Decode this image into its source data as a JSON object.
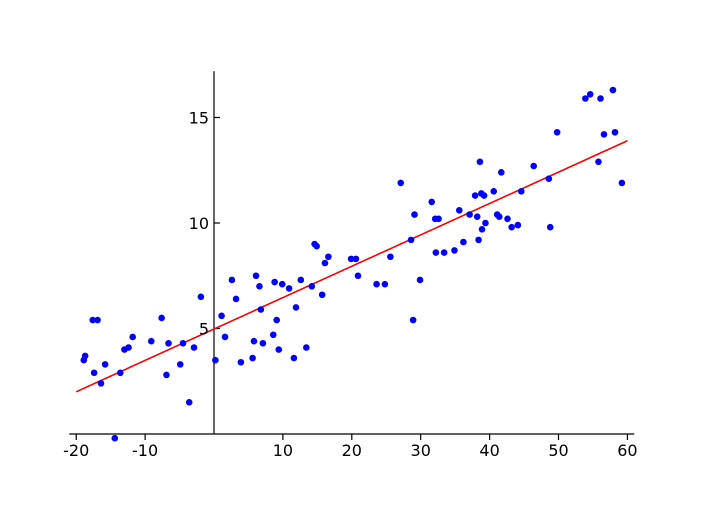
{
  "chart_data": {
    "type": "scatter",
    "title": "",
    "xlabel": "",
    "ylabel": "",
    "xlim": [
      -21,
      61
    ],
    "ylim": [
      0,
      17
    ],
    "x_ticks": [
      -20,
      -10,
      10,
      20,
      30,
      40,
      50,
      60
    ],
    "x_tick_labels": [
      "-20",
      "-10",
      "10",
      "20",
      "30",
      "40",
      "50",
      "60"
    ],
    "y_ticks": [
      5,
      10,
      15
    ],
    "y_tick_labels": [
      "5",
      "10",
      "15"
    ],
    "grid": false,
    "legend": "none",
    "colors": {
      "points": "#0000ff",
      "fit_line": "#ff0000",
      "axes": "#000000"
    },
    "series": [
      {
        "kind": "points",
        "points": [
          [
            -18.9,
            3.5
          ],
          [
            -18.7,
            3.7
          ],
          [
            -17.6,
            5.4
          ],
          [
            -17.4,
            2.9
          ],
          [
            -16.9,
            5.4
          ],
          [
            -16.4,
            2.4
          ],
          [
            -15.8,
            3.3
          ],
          [
            -14.4,
            -0.2
          ],
          [
            -13.6,
            2.9
          ],
          [
            -13.0,
            4.0
          ],
          [
            -12.4,
            4.1
          ],
          [
            -11.8,
            4.6
          ],
          [
            -9.1,
            4.4
          ],
          [
            -7.6,
            5.5
          ],
          [
            -6.9,
            2.8
          ],
          [
            -6.6,
            4.3
          ],
          [
            -4.9,
            3.3
          ],
          [
            -4.5,
            4.3
          ],
          [
            -3.6,
            1.5
          ],
          [
            -2.9,
            4.1
          ],
          [
            -1.9,
            6.5
          ],
          [
            0.2,
            3.5
          ],
          [
            1.1,
            5.6
          ],
          [
            1.6,
            4.6
          ],
          [
            2.6,
            7.3
          ],
          [
            3.2,
            6.4
          ],
          [
            3.9,
            3.4
          ],
          [
            5.6,
            3.6
          ],
          [
            5.8,
            4.4
          ],
          [
            6.1,
            7.5
          ],
          [
            6.6,
            7.0
          ],
          [
            6.8,
            5.9
          ],
          [
            7.1,
            4.3
          ],
          [
            8.6,
            4.7
          ],
          [
            8.8,
            7.2
          ],
          [
            9.1,
            5.4
          ],
          [
            9.4,
            4.0
          ],
          [
            9.9,
            7.1
          ],
          [
            10.9,
            6.9
          ],
          [
            11.6,
            3.6
          ],
          [
            11.9,
            6.0
          ],
          [
            12.6,
            7.3
          ],
          [
            13.4,
            4.1
          ],
          [
            14.2,
            7.0
          ],
          [
            14.6,
            9.0
          ],
          [
            14.9,
            8.9
          ],
          [
            15.7,
            6.6
          ],
          [
            16.1,
            8.1
          ],
          [
            16.6,
            8.4
          ],
          [
            19.9,
            8.3
          ],
          [
            20.6,
            8.3
          ],
          [
            20.9,
            7.5
          ],
          [
            23.6,
            7.1
          ],
          [
            24.8,
            7.1
          ],
          [
            25.6,
            8.4
          ],
          [
            27.1,
            11.9
          ],
          [
            28.6,
            9.2
          ],
          [
            28.9,
            5.4
          ],
          [
            29.1,
            10.4
          ],
          [
            29.9,
            7.3
          ],
          [
            31.6,
            11.0
          ],
          [
            32.1,
            10.2
          ],
          [
            32.2,
            8.6
          ],
          [
            32.6,
            10.2
          ],
          [
            33.4,
            8.6
          ],
          [
            34.9,
            8.7
          ],
          [
            35.6,
            10.6
          ],
          [
            36.2,
            9.1
          ],
          [
            37.1,
            10.4
          ],
          [
            37.9,
            11.3
          ],
          [
            38.2,
            10.3
          ],
          [
            38.4,
            9.2
          ],
          [
            38.6,
            12.9
          ],
          [
            38.8,
            11.4
          ],
          [
            38.9,
            9.7
          ],
          [
            39.2,
            11.3
          ],
          [
            39.4,
            10.0
          ],
          [
            40.6,
            11.5
          ],
          [
            41.1,
            10.4
          ],
          [
            41.4,
            10.3
          ],
          [
            41.7,
            12.4
          ],
          [
            42.6,
            10.2
          ],
          [
            43.2,
            9.8
          ],
          [
            44.1,
            9.9
          ],
          [
            44.6,
            11.5
          ],
          [
            46.4,
            12.7
          ],
          [
            48.6,
            12.1
          ],
          [
            48.8,
            9.8
          ],
          [
            49.8,
            14.3
          ],
          [
            53.9,
            15.9
          ],
          [
            54.6,
            16.1
          ],
          [
            55.8,
            12.9
          ],
          [
            56.1,
            15.9
          ],
          [
            56.6,
            14.2
          ],
          [
            57.9,
            16.3
          ],
          [
            58.2,
            14.3
          ],
          [
            59.2,
            11.9
          ]
        ]
      },
      {
        "kind": "fit_line",
        "points": [
          [
            -20,
            2.0
          ],
          [
            60,
            13.9
          ]
        ]
      }
    ]
  }
}
